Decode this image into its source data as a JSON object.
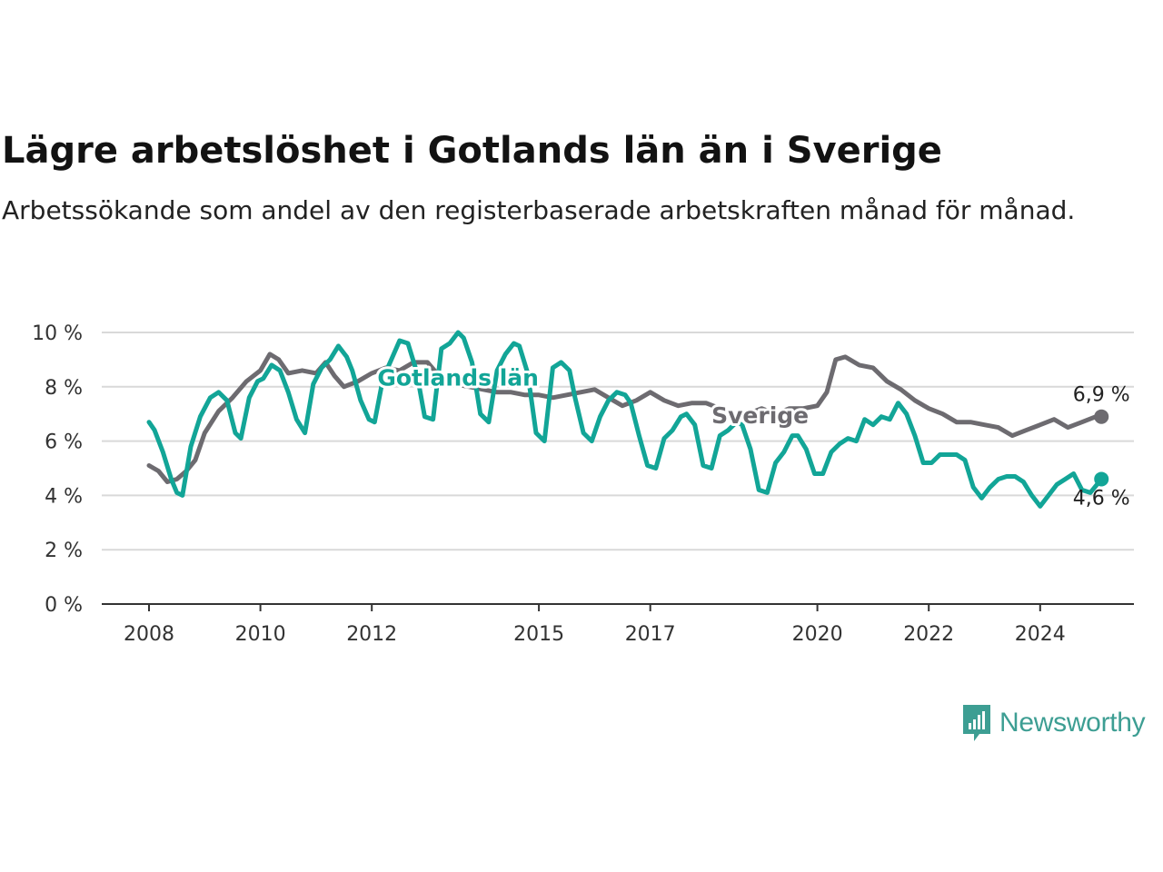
{
  "title": "Lägre arbetslöshet i Gotlands län än i Sverige",
  "subtitle": "Arbetssökande som andel av den registerbaserade arbetskraften månad för månad.",
  "brand": "Newsworthy",
  "colors": {
    "gotland": "#12a597",
    "sverige": "#6d6b70",
    "grid": "#d9d9d9",
    "axis": "#333333",
    "brand": "#3d9e93"
  },
  "chart_data": {
    "type": "line",
    "title": "Lägre arbetslöshet i Gotlands län än i Sverige",
    "subtitle": "Arbetssökande som andel av den registerbaserade arbetskraften månad för månad.",
    "xlabel": "",
    "ylabel": "",
    "xlim": [
      2008,
      2025.5
    ],
    "ylim": [
      0,
      10
    ],
    "y_ticks": [
      0,
      2,
      4,
      6,
      8,
      10
    ],
    "y_tick_labels": [
      "0 %",
      "2 %",
      "4 %",
      "6 %",
      "8 %",
      "10 %"
    ],
    "x_ticks": [
      2008,
      2010,
      2012,
      2015,
      2017,
      2020,
      2022,
      2024
    ],
    "x_tick_labels": [
      "2008",
      "2010",
      "2012",
      "2015",
      "2017",
      "2020",
      "2022",
      "2024"
    ],
    "grid": "horizontal",
    "legend": "direct labels",
    "series": [
      {
        "name": "Sverige",
        "end_label": "6,9 %",
        "x": [
          2008.0,
          2008.17,
          2008.33,
          2008.5,
          2008.67,
          2008.83,
          2009.0,
          2009.25,
          2009.5,
          2009.75,
          2010.0,
          2010.17,
          2010.33,
          2010.5,
          2010.75,
          2011.0,
          2011.17,
          2011.33,
          2011.5,
          2011.75,
          2012.0,
          2012.25,
          2012.5,
          2012.75,
          2013.0,
          2013.25,
          2013.5,
          2013.75,
          2014.0,
          2014.25,
          2014.5,
          2014.75,
          2015.0,
          2015.25,
          2015.5,
          2015.75,
          2016.0,
          2016.25,
          2016.5,
          2016.75,
          2017.0,
          2017.25,
          2017.5,
          2017.75,
          2018.0,
          2018.25,
          2018.5,
          2018.75,
          2019.0,
          2019.25,
          2019.5,
          2019.75,
          2020.0,
          2020.17,
          2020.33,
          2020.5,
          2020.75,
          2021.0,
          2021.25,
          2021.5,
          2021.75,
          2022.0,
          2022.25,
          2022.5,
          2022.75,
          2023.0,
          2023.25,
          2023.5,
          2023.75,
          2024.0,
          2024.25,
          2024.5,
          2024.75,
          2025.0,
          2025.1
        ],
        "values": [
          5.1,
          4.9,
          4.5,
          4.6,
          4.9,
          5.3,
          6.3,
          7.1,
          7.6,
          8.2,
          8.6,
          9.2,
          9.0,
          8.5,
          8.6,
          8.5,
          8.9,
          8.4,
          8.0,
          8.2,
          8.5,
          8.7,
          8.6,
          8.9,
          8.9,
          8.3,
          8.1,
          8.0,
          7.9,
          7.8,
          7.8,
          7.7,
          7.7,
          7.6,
          7.7,
          7.8,
          7.9,
          7.6,
          7.3,
          7.5,
          7.8,
          7.5,
          7.3,
          7.4,
          7.4,
          7.2,
          7.0,
          7.0,
          7.2,
          7.0,
          7.2,
          7.2,
          7.3,
          7.8,
          9.0,
          9.1,
          8.8,
          8.7,
          8.2,
          7.9,
          7.5,
          7.2,
          7.0,
          6.7,
          6.7,
          6.6,
          6.5,
          6.2,
          6.4,
          6.6,
          6.8,
          6.5,
          6.7,
          6.9,
          6.9
        ]
      },
      {
        "name": "Gotlands län",
        "end_label": "4,6 %",
        "x": [
          2008.0,
          2008.1,
          2008.25,
          2008.4,
          2008.5,
          2008.6,
          2008.75,
          2008.92,
          2009.1,
          2009.25,
          2009.4,
          2009.55,
          2009.65,
          2009.8,
          2009.95,
          2010.05,
          2010.2,
          2010.35,
          2010.5,
          2010.65,
          2010.8,
          2010.95,
          2011.1,
          2011.25,
          2011.4,
          2011.55,
          2011.65,
          2011.8,
          2011.95,
          2012.05,
          2012.2,
          2012.35,
          2012.5,
          2012.65,
          2012.8,
          2012.95,
          2013.1,
          2013.25,
          2013.4,
          2013.55,
          2013.65,
          2013.8,
          2013.95,
          2014.1,
          2014.25,
          2014.4,
          2014.55,
          2014.65,
          2014.8,
          2014.95,
          2015.1,
          2015.25,
          2015.4,
          2015.55,
          2015.65,
          2015.8,
          2015.95,
          2016.1,
          2016.25,
          2016.4,
          2016.55,
          2016.65,
          2016.8,
          2016.95,
          2017.1,
          2017.25,
          2017.4,
          2017.55,
          2017.65,
          2017.8,
          2017.95,
          2018.1,
          2018.25,
          2018.4,
          2018.55,
          2018.65,
          2018.8,
          2018.95,
          2019.1,
          2019.25,
          2019.4,
          2019.55,
          2019.65,
          2019.8,
          2019.95,
          2020.1,
          2020.25,
          2020.4,
          2020.55,
          2020.7,
          2020.85,
          2021.0,
          2021.15,
          2021.3,
          2021.45,
          2021.6,
          2021.75,
          2021.9,
          2022.05,
          2022.2,
          2022.35,
          2022.5,
          2022.65,
          2022.8,
          2022.95,
          2023.1,
          2023.25,
          2023.4,
          2023.55,
          2023.7,
          2023.85,
          2024.0,
          2024.15,
          2024.3,
          2024.45,
          2024.6,
          2024.75,
          2024.9,
          2025.1
        ],
        "values": [
          6.7,
          6.4,
          5.6,
          4.6,
          4.1,
          4.0,
          5.8,
          6.9,
          7.6,
          7.8,
          7.5,
          6.3,
          6.1,
          7.6,
          8.2,
          8.3,
          8.8,
          8.6,
          7.8,
          6.8,
          6.3,
          8.1,
          8.7,
          9.0,
          9.5,
          9.1,
          8.6,
          7.5,
          6.8,
          6.7,
          8.3,
          9.0,
          9.7,
          9.6,
          8.6,
          6.9,
          6.8,
          9.4,
          9.6,
          10.0,
          9.8,
          8.9,
          7.0,
          6.7,
          8.6,
          9.2,
          9.6,
          9.5,
          8.5,
          6.3,
          6.0,
          8.7,
          8.9,
          8.6,
          7.6,
          6.3,
          6.0,
          6.9,
          7.5,
          7.8,
          7.7,
          7.4,
          6.2,
          5.1,
          5.0,
          6.1,
          6.4,
          6.9,
          7.0,
          6.6,
          5.1,
          5.0,
          6.2,
          6.4,
          6.7,
          6.6,
          5.7,
          4.2,
          4.1,
          5.2,
          5.6,
          6.2,
          6.2,
          5.7,
          4.8,
          4.8,
          5.6,
          5.9,
          6.1,
          6.0,
          6.8,
          6.6,
          6.9,
          6.8,
          7.4,
          7.0,
          6.2,
          5.2,
          5.2,
          5.5,
          5.5,
          5.5,
          5.3,
          4.3,
          3.9,
          4.3,
          4.6,
          4.7,
          4.7,
          4.5,
          4.0,
          3.6,
          4.0,
          4.4,
          4.6,
          4.8,
          4.2,
          4.1,
          4.6
        ]
      }
    ]
  }
}
